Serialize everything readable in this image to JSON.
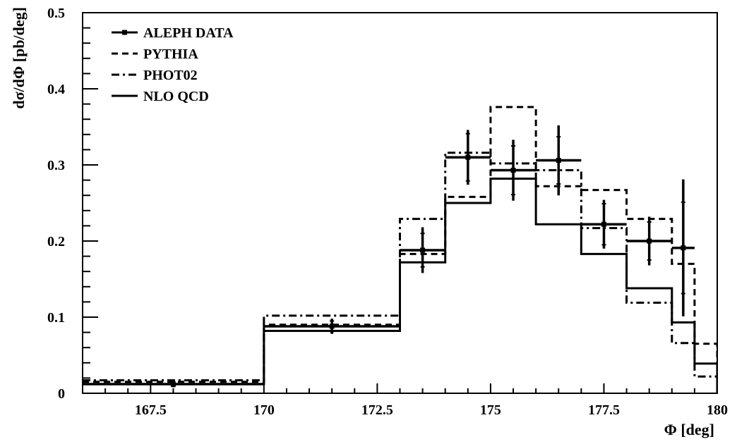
{
  "chart_data": {
    "type": "line",
    "xlabel": "Φ [deg]",
    "ylabel": "dσ/dΦ [pb/deg]",
    "xlim": [
      166,
      180
    ],
    "ylim": [
      0,
      0.5
    ],
    "x_ticks": [
      {
        "value": 167.5,
        "label": "167.5"
      },
      {
        "value": 170,
        "label": "170"
      },
      {
        "value": 172.5,
        "label": "172.5"
      },
      {
        "value": 175,
        "label": "175"
      },
      {
        "value": 177.5,
        "label": "177.5"
      },
      {
        "value": 180,
        "label": "180"
      }
    ],
    "y_ticks": [
      {
        "value": 0,
        "label": "0"
      },
      {
        "value": 0.1,
        "label": "0.1"
      },
      {
        "value": 0.2,
        "label": "0.2"
      },
      {
        "value": 0.3,
        "label": "0.3"
      },
      {
        "value": 0.4,
        "label": "0.4"
      },
      {
        "value": 0.5,
        "label": "0.5"
      }
    ],
    "grid": false,
    "legend_position": "top-left",
    "bin_edges": [
      166,
      170,
      173,
      174,
      175,
      176,
      177,
      178,
      179,
      179.5,
      180
    ],
    "series": [
      {
        "name": "ALEPH DATA",
        "kind": "points",
        "style": "solid",
        "x": [
          168,
          171.5,
          173.5,
          174.5,
          175.5,
          176.5,
          177.5,
          178.5,
          179.25
        ],
        "x_low": [
          166,
          170,
          173,
          174,
          175,
          176,
          177,
          178,
          179
        ],
        "x_high": [
          170,
          173,
          174,
          175,
          176,
          177,
          178,
          179,
          179.5
        ],
        "y": [
          0.012,
          0.088,
          0.188,
          0.31,
          0.293,
          0.306,
          0.222,
          0.2,
          0.191
        ],
        "err_stat": [
          0.003,
          0.007,
          0.022,
          0.031,
          0.032,
          0.031,
          0.027,
          0.025,
          0.06
        ],
        "err_tot": [
          0.004,
          0.01,
          0.03,
          0.036,
          0.04,
          0.046,
          0.032,
          0.032,
          0.09
        ]
      },
      {
        "name": "PYTHIA",
        "kind": "histogram",
        "style": "dashed",
        "values": [
          0.015,
          0.09,
          0.183,
          0.258,
          0.376,
          0.272,
          0.267,
          0.229,
          0.17,
          0.065
        ]
      },
      {
        "name": "PHOT02",
        "kind": "histogram",
        "style": "dashdot",
        "values": [
          0.017,
          0.102,
          0.229,
          0.316,
          0.302,
          0.293,
          0.217,
          0.119,
          0.066,
          0.022
        ]
      },
      {
        "name": "NLO QCD",
        "kind": "histogram",
        "style": "solid",
        "values": [
          0.012,
          0.082,
          0.172,
          0.25,
          0.282,
          0.222,
          0.183,
          0.138,
          0.093,
          0.039
        ]
      }
    ]
  }
}
